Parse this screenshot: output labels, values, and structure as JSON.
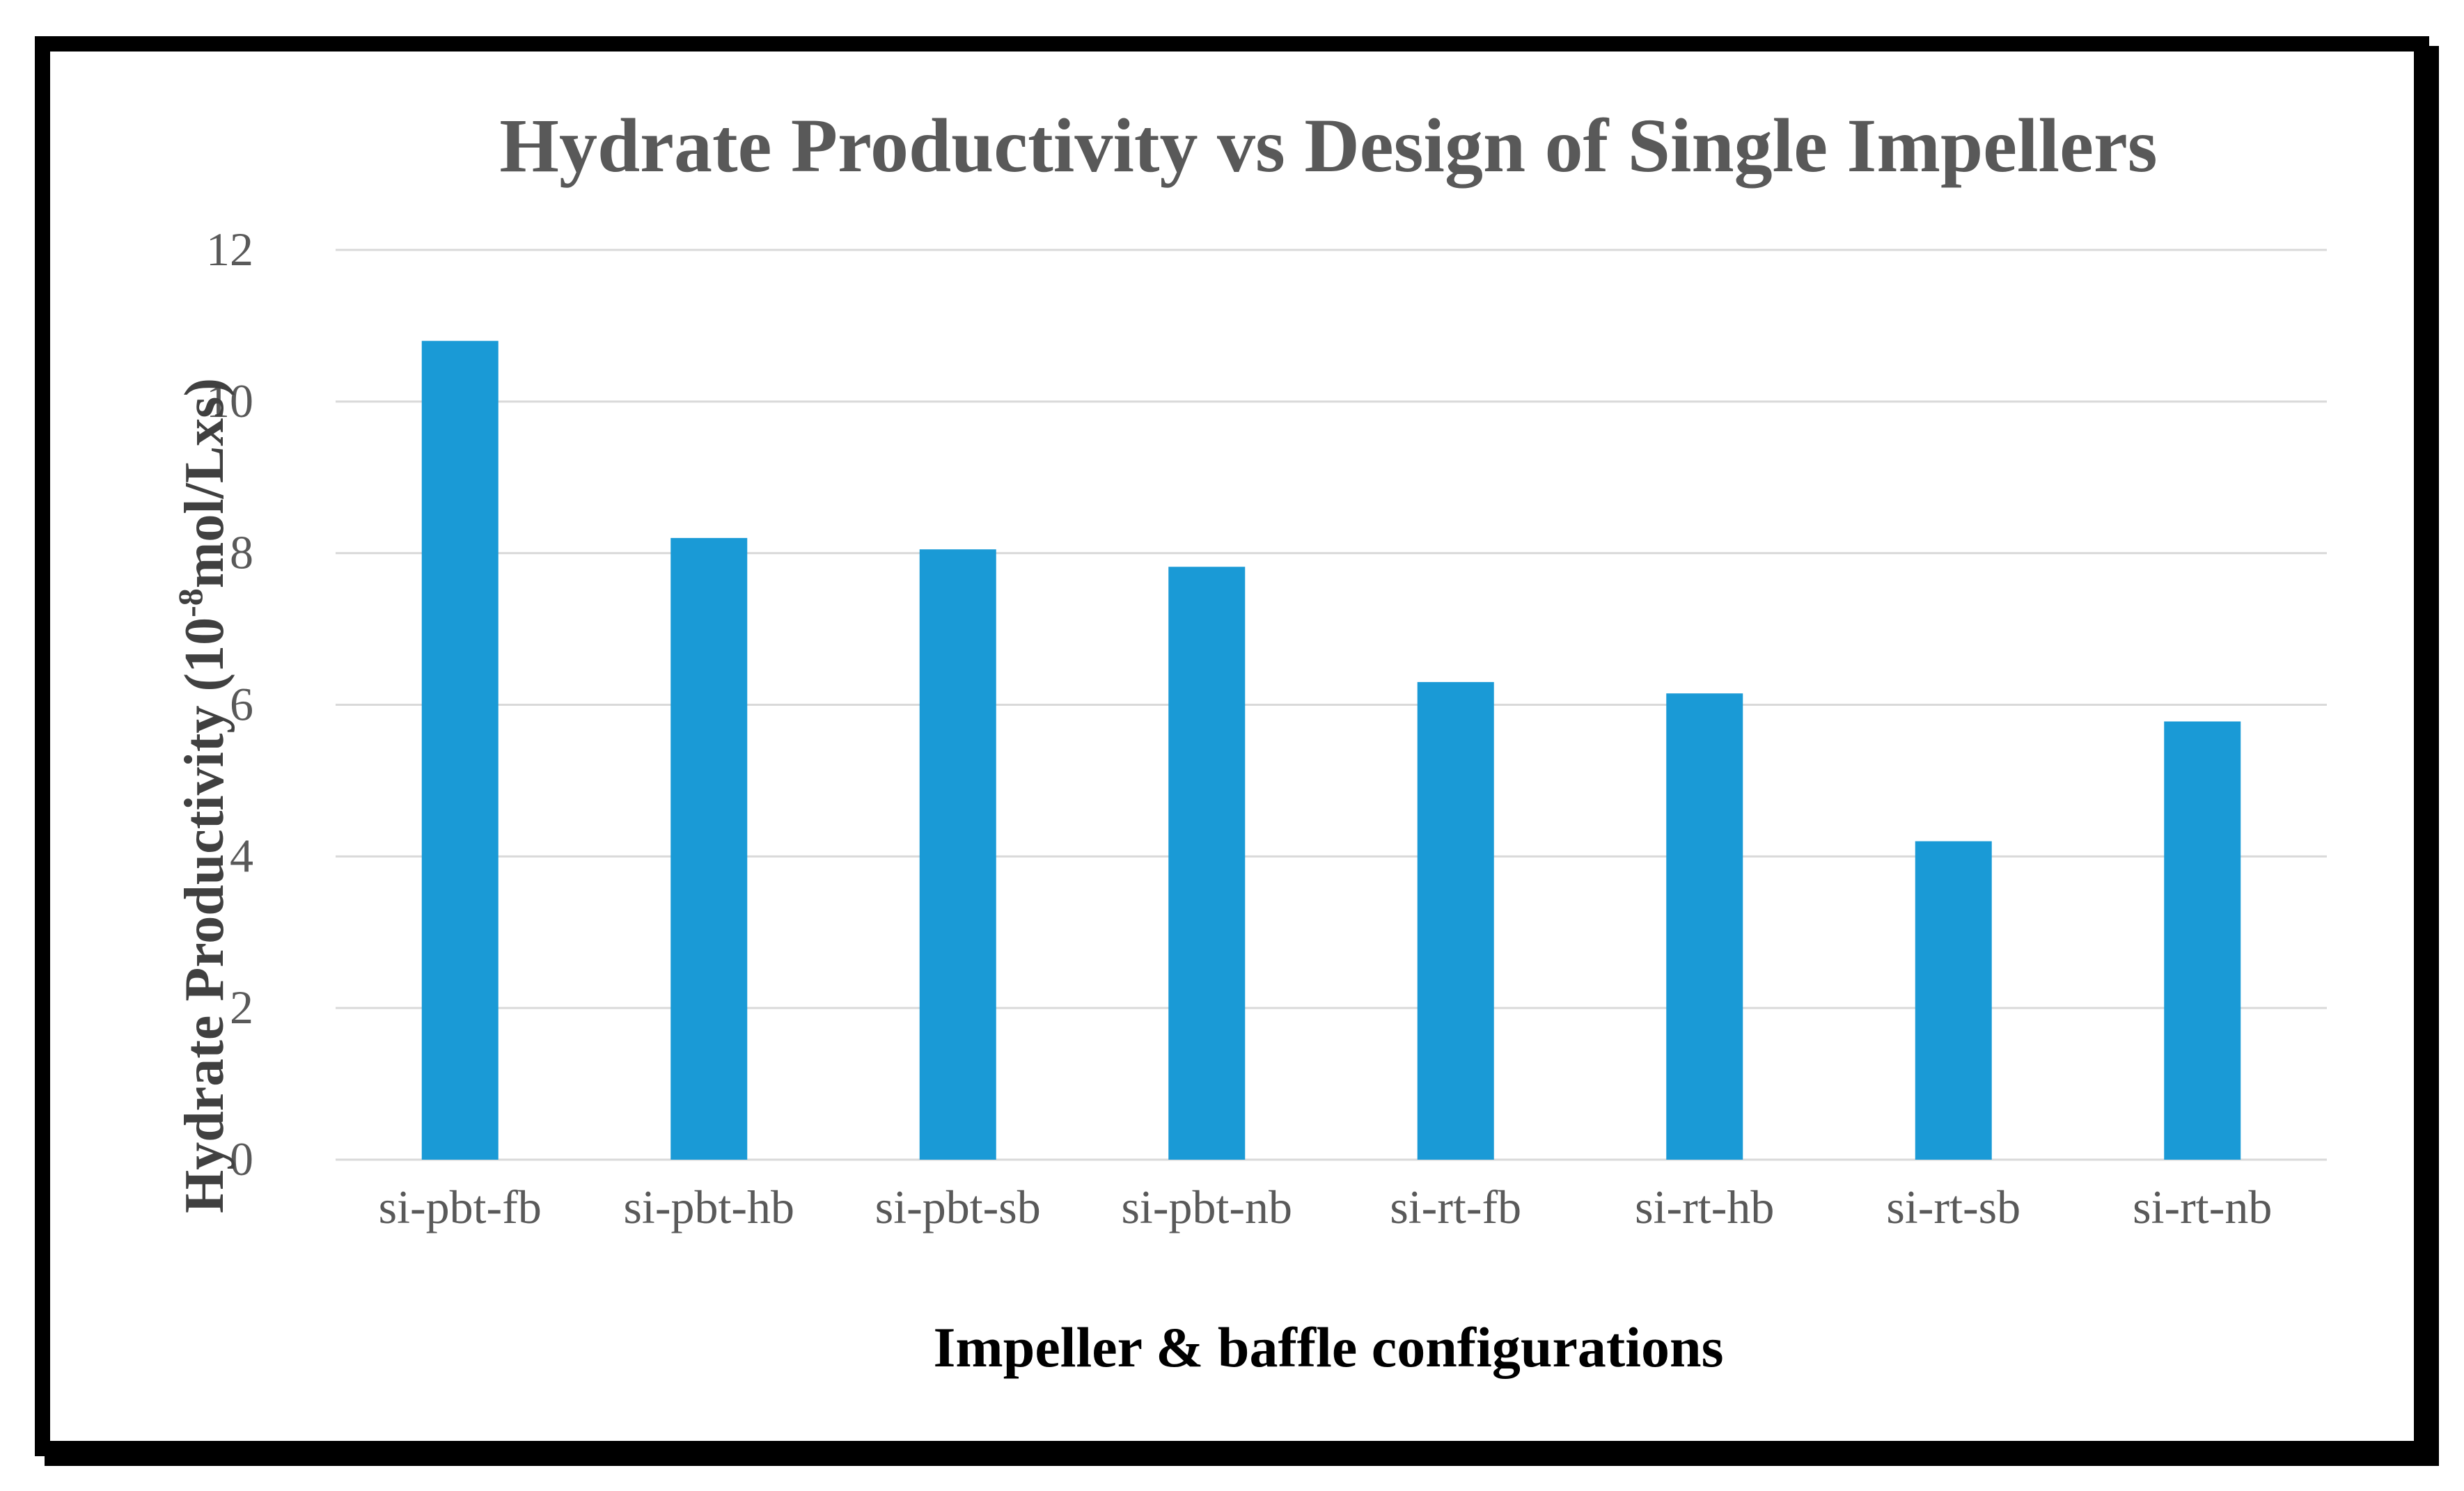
{
  "chart_data": {
    "type": "bar",
    "title": "Hydrate Productivity vs Design of Single Impellers",
    "xlabel": "Impeller & baffle configurations",
    "ylabel": {
      "prefix": "Hydrate Productivity (10",
      "superscript": "-8",
      "suffix": "mol/Lxs)"
    },
    "categories": [
      "si-pbt-fb",
      "si-pbt-hb",
      "si-pbt-sb",
      "si-pbt-nb",
      "si-rt-fb",
      "si-rt-hb",
      "si-rt-sb",
      "si-rt-nb"
    ],
    "values": [
      10.8,
      8.2,
      8.05,
      7.82,
      6.3,
      6.15,
      4.2,
      5.78
    ],
    "ylim": [
      0,
      12
    ],
    "yticks": [
      "0",
      "2",
      "4",
      "6",
      "8",
      "10",
      "12"
    ],
    "grid": true,
    "legend": "none",
    "color": "#1a9ad6"
  }
}
